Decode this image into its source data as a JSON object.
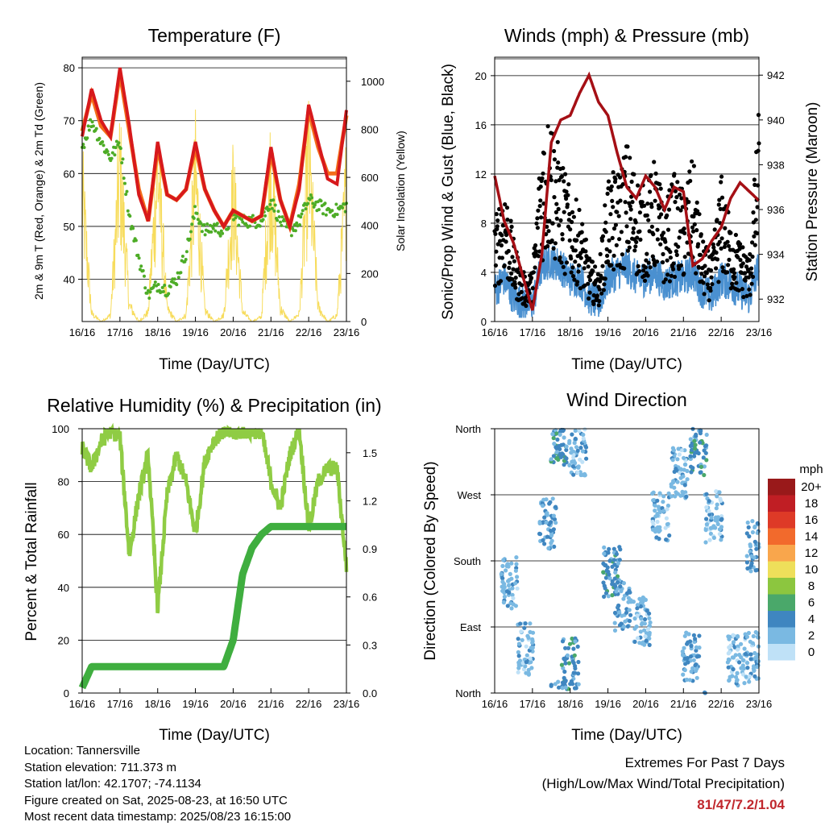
{
  "colors": {
    "temp2m": "#d7191c",
    "temp9m": "#f46d1a",
    "dewpoint": "#4dac26",
    "solar": "#f7dc5c",
    "wind_gust": "#000000",
    "wind_sonic": "#4a90d0",
    "pressure": "#a50f15",
    "rh": "#8fcc44",
    "precip": "#3fae3f",
    "extremes": "#c0272d"
  },
  "x_ticks": [
    "16/16",
    "17/16",
    "18/16",
    "19/16",
    "20/16",
    "21/16",
    "22/16",
    "23/16"
  ],
  "chart_data": [
    {
      "type": "line",
      "title": "Temperature (F)",
      "xlabel": "Time (Day/UTC)",
      "ylabel": "2m & 9m T (Red, Orange) & 2m Td (Green)",
      "ylabel_right": "Solar Insolation (Yellow)",
      "ylim": [
        32,
        82
      ],
      "yticks": [
        40,
        50,
        60,
        70,
        80
      ],
      "ylim_right": [
        0,
        1100
      ],
      "yticks_right": [
        0,
        200,
        400,
        600,
        800,
        1000
      ],
      "x": [
        16.0,
        16.25,
        16.5,
        16.75,
        17.0,
        17.25,
        17.5,
        17.75,
        18.0,
        18.25,
        18.5,
        18.75,
        19.0,
        19.25,
        19.5,
        19.75,
        20.0,
        20.25,
        20.5,
        20.75,
        21.0,
        21.25,
        21.5,
        21.75,
        22.0,
        22.25,
        22.5,
        22.75,
        23.0
      ],
      "series": [
        {
          "key": "temp2m",
          "values": [
            67,
            76,
            70,
            67,
            80,
            69,
            56,
            51,
            66,
            56,
            55,
            57,
            66,
            57,
            53,
            50,
            53,
            52,
            51,
            52,
            65,
            55,
            50,
            57,
            73,
            66,
            59,
            58,
            72
          ]
        },
        {
          "key": "temp9m",
          "values": [
            68,
            75,
            69,
            67,
            79,
            68,
            57,
            51,
            65,
            56,
            55,
            57,
            65,
            57,
            53,
            50,
            53,
            52,
            51,
            52,
            64,
            55,
            50,
            58,
            72,
            65,
            60,
            60,
            71
          ]
        },
        {
          "key": "dewpoint",
          "values": [
            65,
            70,
            66,
            63,
            66,
            52,
            44,
            37,
            39,
            38,
            40,
            45,
            53,
            49,
            50,
            49,
            52,
            51,
            51,
            51,
            55,
            51,
            49,
            51,
            55,
            54,
            53,
            53,
            54
          ]
        },
        {
          "key": "solar",
          "values": [
            800,
            50,
            0,
            40,
            950,
            100,
            0,
            60,
            950,
            80,
            0,
            40,
            900,
            70,
            0,
            40,
            800,
            60,
            0,
            30,
            960,
            80,
            0,
            50,
            1000,
            90,
            0,
            40,
            850
          ]
        }
      ]
    },
    {
      "type": "scatter",
      "title": "Winds (mph) & Pressure (mb)",
      "xlabel": "Time (Day/UTC)",
      "ylabel": "Sonic/Prop Wind & Gust (Blue, Black)",
      "ylabel_right": "Station Pressure (Maroon)",
      "ylim": [
        0,
        21.5
      ],
      "yticks": [
        0,
        4,
        8,
        12,
        16,
        20
      ],
      "ylim_right": [
        931,
        942.8
      ],
      "yticks_right": [
        932,
        934,
        936,
        938,
        940,
        942
      ],
      "x": [
        16.0,
        16.25,
        16.5,
        16.75,
        17.0,
        17.25,
        17.5,
        17.75,
        18.0,
        18.25,
        18.5,
        18.75,
        19.0,
        19.25,
        19.5,
        19.75,
        20.0,
        20.25,
        20.5,
        20.75,
        21.0,
        21.25,
        21.5,
        21.75,
        22.0,
        22.25,
        22.5,
        22.75,
        23.0
      ],
      "series": [
        {
          "key": "wind_gust",
          "values": [
            6,
            9,
            5,
            3,
            3,
            12,
            13,
            10,
            8,
            7,
            4,
            3,
            9,
            9,
            11,
            9,
            8,
            10,
            7,
            9,
            8,
            10,
            5,
            4,
            9,
            6,
            5,
            4,
            13
          ]
        },
        {
          "key": "wind_sonic",
          "values": [
            2.5,
            3.5,
            2,
            1.5,
            1.5,
            4.5,
            5,
            4.5,
            3.5,
            3.5,
            2,
            1.5,
            3.5,
            4,
            4.5,
            3.5,
            3.5,
            4,
            3,
            3.5,
            3.5,
            4,
            2.5,
            2,
            3.5,
            3,
            2.5,
            2,
            4.5
          ]
        },
        {
          "key": "pressure",
          "values": [
            937.5,
            935.5,
            934.5,
            933,
            931.5,
            934,
            939,
            940,
            940.2,
            941.2,
            942,
            940.8,
            940.2,
            938.5,
            937,
            936.5,
            937.5,
            937,
            936,
            937,
            936.8,
            933.5,
            933.8,
            934.6,
            935.2,
            936.5,
            937.2,
            936.8,
            936.4
          ]
        }
      ]
    },
    {
      "type": "line",
      "title": "Relative Humidity (%) & Precipitation (in)",
      "xlabel": "Time (Day/UTC)",
      "ylabel": "Percent & Total Rainfall",
      "ylim": [
        0,
        100
      ],
      "yticks": [
        0,
        20,
        40,
        60,
        80,
        100
      ],
      "ylim_right": [
        0,
        1.65
      ],
      "yticks_right": [
        "0.0",
        "0.3",
        "0.6",
        "0.9",
        "1.2",
        "1.5"
      ],
      "x": [
        16.0,
        16.25,
        16.5,
        16.75,
        17.0,
        17.25,
        17.5,
        17.75,
        18.0,
        18.25,
        18.5,
        18.75,
        19.0,
        19.25,
        19.5,
        19.75,
        20.0,
        20.25,
        20.5,
        20.75,
        21.0,
        21.25,
        21.5,
        21.75,
        22.0,
        22.25,
        22.5,
        22.75,
        23.0
      ],
      "series": [
        {
          "key": "rh",
          "values": [
            93,
            85,
            95,
            99,
            97,
            52,
            75,
            90,
            32,
            75,
            90,
            80,
            60,
            88,
            96,
            99,
            98,
            99,
            99,
            99,
            80,
            70,
            90,
            100,
            62,
            80,
            85,
            85,
            48
          ]
        },
        {
          "key": "precip_pct",
          "values": [
            2,
            10,
            10,
            10,
            10,
            10,
            10,
            10,
            10,
            10,
            10,
            10,
            10,
            10,
            10,
            10,
            20,
            45,
            55,
            60,
            63,
            63,
            63,
            63,
            63,
            63,
            63,
            63,
            63
          ]
        }
      ]
    },
    {
      "type": "scatter",
      "title": "Wind Direction",
      "xlabel": "Time (Day/UTC)",
      "ylabel": "Direction (Colored By Speed)",
      "yticks": [
        "North",
        "East",
        "South",
        "West",
        "North"
      ],
      "ylim": [
        0,
        360
      ],
      "legend": {
        "title": "mph",
        "labels": [
          "20+",
          "18",
          "16",
          "14",
          "12",
          "10",
          "8",
          "6",
          "4",
          "2",
          "0"
        ],
        "colors": [
          "#99191a",
          "#c01e24",
          "#de3a27",
          "#f26a2c",
          "#f9a64c",
          "#eedf5a",
          "#8cc63f",
          "#4aa86a",
          "#3f86c0",
          "#7ab9e2",
          "#bfe1f7"
        ]
      },
      "clusters": [
        {
          "x": 16.4,
          "dir": 150,
          "speed": 2
        },
        {
          "x": 16.8,
          "dir": 60,
          "speed": 2
        },
        {
          "x": 17.4,
          "dir": 230,
          "speed": 3
        },
        {
          "x": 17.7,
          "dir": 345,
          "speed": 4
        },
        {
          "x": 18.0,
          "dir": 40,
          "speed": 4
        },
        {
          "x": 18.2,
          "dir": 330,
          "speed": 2
        },
        {
          "x": 19.1,
          "dir": 165,
          "speed": 4
        },
        {
          "x": 19.4,
          "dir": 120,
          "speed": 3
        },
        {
          "x": 19.9,
          "dir": 100,
          "speed": 2
        },
        {
          "x": 20.4,
          "dir": 240,
          "speed": 2
        },
        {
          "x": 20.9,
          "dir": 300,
          "speed": 2
        },
        {
          "x": 21.2,
          "dir": 50,
          "speed": 3
        },
        {
          "x": 21.4,
          "dir": 330,
          "speed": 4
        },
        {
          "x": 21.8,
          "dir": 240,
          "speed": 2
        },
        {
          "x": 22.4,
          "dir": 45,
          "speed": 2
        },
        {
          "x": 22.8,
          "dir": 50,
          "speed": 2
        },
        {
          "x": 22.9,
          "dir": 200,
          "speed": 3
        }
      ]
    }
  ],
  "footer": {
    "location": "Location: Tannersville",
    "elevation": "Station elevation: 711.373 m",
    "latlon": "Station lat/lon: 42.1707; -74.1134",
    "created": "Figure created on Sat, 2025-08-23, at 16:50 UTC",
    "recent": "Most recent data timestamp: 2025/08/23 16:15:00"
  },
  "extremes": {
    "title": "Extremes For Past 7 Days",
    "subtitle": "(High/Low/Max Wind/Total Precipitation)",
    "values": "81/47/7.2/1.04"
  }
}
